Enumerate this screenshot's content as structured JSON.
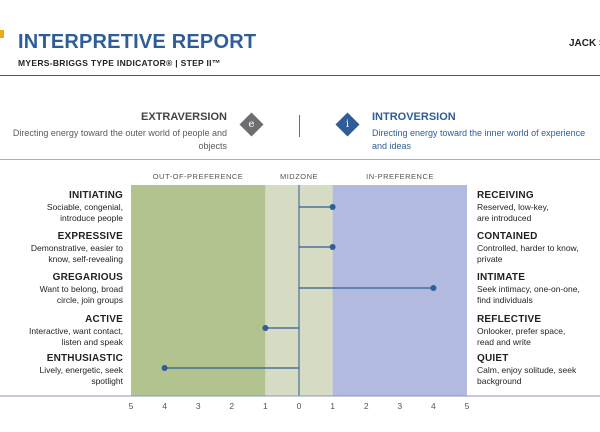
{
  "header": {
    "title": "INTERPRETIVE REPORT",
    "subtitle": "MYERS-BRIGGS TYPE INDICATOR®  |  STEP II™",
    "person": "JACK S"
  },
  "dichotomy": {
    "left": {
      "title": "EXTRAVERSION",
      "badge": "e",
      "desc": "Directing energy toward the outer world of people and objects"
    },
    "right": {
      "title": "INTROVERSION",
      "badge": "i",
      "desc": "Directing energy toward the inner world of experience and ideas"
    }
  },
  "zones": {
    "out_of_preference": "OUT-OF-PREFERENCE",
    "midzone": "MIDZONE",
    "in_preference": "IN-PREFERENCE"
  },
  "colors": {
    "brand": "#2e5d97",
    "out_of_preference": "#b3c38f",
    "midzone": "#d6dcc3",
    "in_preference": "#b3badf",
    "point": "#2e5d97"
  },
  "facets": [
    {
      "left_name": "INITIATING",
      "left_desc": "Sociable, congenial, introduce people",
      "right_name": "RECEIVING",
      "right_desc": "Reserved, low-key, are introduced"
    },
    {
      "left_name": "EXPRESSIVE",
      "left_desc": "Demonstrative, easier to know, self-revealing",
      "right_name": "CONTAINED",
      "right_desc": "Controlled, harder to know, private"
    },
    {
      "left_name": "GREGARIOUS",
      "left_desc": "Want to belong, broad circle, join groups",
      "right_name": "INTIMATE",
      "right_desc": "Seek intimacy, one-on-one, find individuals"
    },
    {
      "left_name": "ACTIVE",
      "left_desc": "Interactive, want contact, listen and speak",
      "right_name": "REFLECTIVE",
      "right_desc": "Onlooker, prefer space, read and write"
    },
    {
      "left_name": "ENTHUSIASTIC",
      "left_desc": "Lively, energetic, seek spotlight",
      "right_name": "QUIET",
      "right_desc": "Calm, enjoy solitude, seek background"
    }
  ],
  "chart_data": {
    "type": "scatter",
    "categories": [
      "INITIATING–RECEIVING",
      "EXPRESSIVE–CONTAINED",
      "GREGARIOUS–INTIMATE",
      "ACTIVE–REFLECTIVE",
      "ENTHUSIASTIC–QUIET"
    ],
    "values": [
      1,
      1,
      4,
      -1,
      -4
    ],
    "xlim": [
      -5,
      5
    ],
    "x_ticks": [
      -5,
      -4,
      -3,
      -2,
      -1,
      0,
      1,
      2,
      3,
      4,
      5
    ],
    "x_tick_labels": [
      "5",
      "4",
      "3",
      "2",
      "1",
      "0",
      "1",
      "2",
      "3",
      "4",
      "5"
    ],
    "midzone": [
      -1,
      1
    ],
    "grid": false,
    "legend": "none"
  }
}
